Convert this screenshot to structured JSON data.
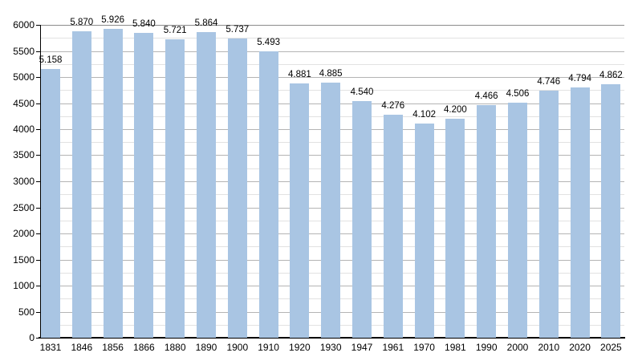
{
  "page": {
    "background_color": "#ffffff"
  },
  "chart_data": {
    "type": "bar",
    "title": "",
    "xlabel": "",
    "ylabel": "",
    "categories": [
      "1831",
      "1846",
      "1856",
      "1866",
      "1880",
      "1890",
      "1900",
      "1910",
      "1920",
      "1930",
      "1947",
      "1961",
      "1970",
      "1981",
      "1990",
      "2000",
      "2010",
      "2020",
      "2025"
    ],
    "values": [
      5158,
      5870,
      5926,
      5840,
      5721,
      5864,
      5737,
      5493,
      4881,
      4885,
      4540,
      4276,
      4102,
      4200,
      4466,
      4506,
      4746,
      4794,
      4862
    ],
    "value_labels": [
      "5.158",
      "5.870",
      "5.926",
      "5.840",
      "5.721",
      "5.864",
      "5.737",
      "5.493",
      "4.881",
      "4.885",
      "4.540",
      "4.276",
      "4.102",
      "4.200",
      "4.466",
      "4.506",
      "4.746",
      "4.794",
      "4.862"
    ],
    "ylim": [
      0,
      6000
    ],
    "y_tick_step": 500,
    "y_minor_step": 250,
    "y_tick_labels": [
      "0",
      "500",
      "1000",
      "1500",
      "2000",
      "2500",
      "3000",
      "3500",
      "4000",
      "4500",
      "5000",
      "5500",
      "6000"
    ],
    "grid": "horizontal",
    "legend_position": "none",
    "colors": {
      "bar_fill": "#a9c5e3",
      "major_grid": "#b4b4b4",
      "minor_grid": "#e2e2e2",
      "top_grid": "#8c8c8c",
      "axis": "#000000",
      "text": "#000000"
    }
  }
}
